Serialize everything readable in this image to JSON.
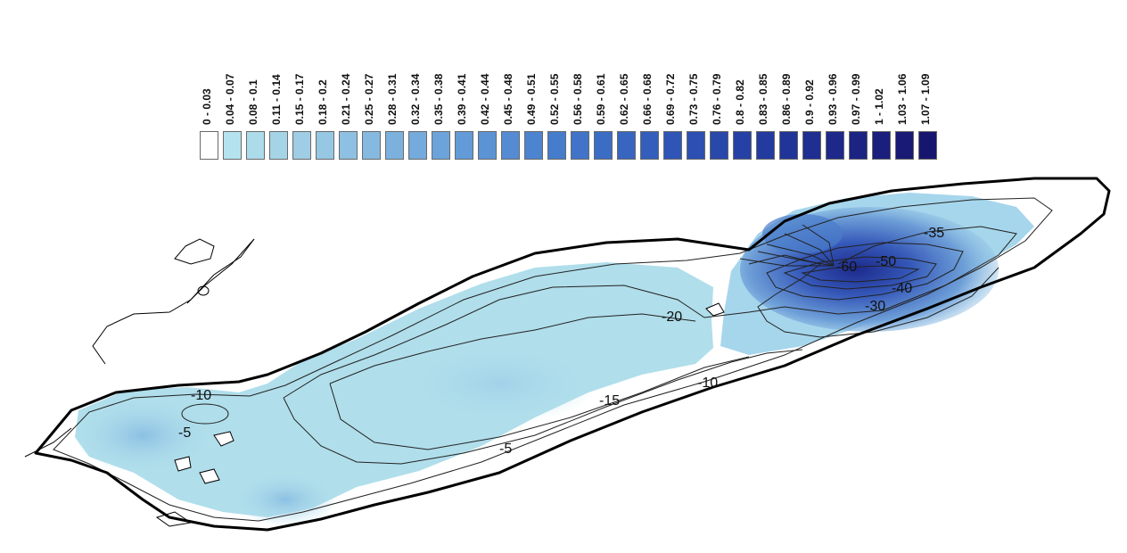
{
  "legend": {
    "classes": [
      {
        "label": "0 - 0.03",
        "color": "#ffffff"
      },
      {
        "label": "0.04 - 0.07",
        "color": "#b4e2ee"
      },
      {
        "label": "0.08 - 0.1",
        "color": "#acdbea"
      },
      {
        "label": "0.11 - 0.14",
        "color": "#a5d4e7"
      },
      {
        "label": "0.15 - 0.17",
        "color": "#9ecde5"
      },
      {
        "label": "0.18 - 0.2",
        "color": "#96c7e3"
      },
      {
        "label": "0.21 - 0.24",
        "color": "#8dc0e2"
      },
      {
        "label": "0.25 - 0.27",
        "color": "#85b9e0"
      },
      {
        "label": "0.28 - 0.31",
        "color": "#7cb1de"
      },
      {
        "label": "0.32 - 0.34",
        "color": "#74aadc"
      },
      {
        "label": "0.35 - 0.38",
        "color": "#6ba3da"
      },
      {
        "label": "0.39 - 0.41",
        "color": "#639bd8"
      },
      {
        "label": "0.42 - 0.44",
        "color": "#5b93d5"
      },
      {
        "label": "0.45 - 0.48",
        "color": "#548bd2"
      },
      {
        "label": "0.49 - 0.51",
        "color": "#4d84cf"
      },
      {
        "label": "0.52 - 0.55",
        "color": "#467ccc"
      },
      {
        "label": "0.56 - 0.58",
        "color": "#4174c8"
      },
      {
        "label": "0.59 - 0.61",
        "color": "#3c6dc4"
      },
      {
        "label": "0.62 - 0.65",
        "color": "#3765c0"
      },
      {
        "label": "0.66 - 0.68",
        "color": "#335ebb"
      },
      {
        "label": "0.69 - 0.72",
        "color": "#2f56b6"
      },
      {
        "label": "0.73 - 0.75",
        "color": "#2c4fb1"
      },
      {
        "label": "0.76 - 0.79",
        "color": "#2948ab"
      },
      {
        "label": "0.8 - 0.82",
        "color": "#2641a5"
      },
      {
        "label": "0.83 - 0.85",
        "color": "#233b9f"
      },
      {
        "label": "0.86 - 0.89",
        "color": "#213498"
      },
      {
        "label": "0.9 - 0.92",
        "color": "#1f2e91"
      },
      {
        "label": "0.93 - 0.96",
        "color": "#1d288a"
      },
      {
        "label": "0.97 - 0.99",
        "color": "#1b2383"
      },
      {
        "label": "1 - 1.02",
        "color": "#1a1e7c"
      },
      {
        "label": "1.03 - 1.06",
        "color": "#181a75"
      },
      {
        "label": "1.07 - 1.09",
        "color": "#17166e"
      }
    ]
  },
  "map": {
    "contour_labels": [
      "-10",
      "-5",
      "-5",
      "-15",
      "-10",
      "-20",
      "-35",
      "-60",
      "-50",
      "-40",
      "-30"
    ],
    "colors": {
      "shoreline": "#000000",
      "contour": "#222222",
      "light_blue": "#b0deeb",
      "mid_blue": "#7fb5de",
      "deep_blue": "#3f6fc6",
      "darkest_blue": "#1c2a8c"
    }
  }
}
